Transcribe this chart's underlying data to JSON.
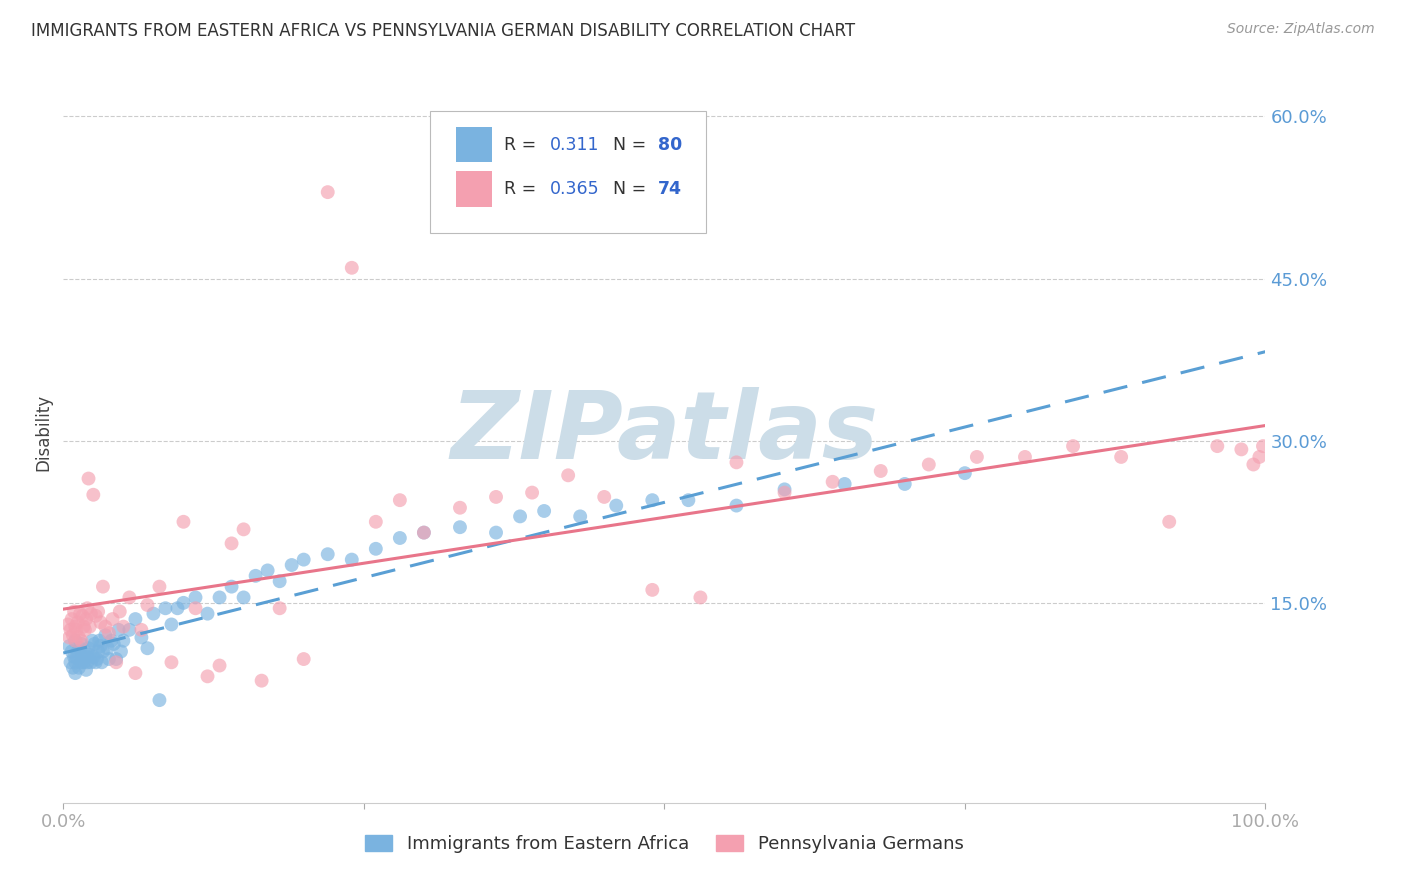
{
  "title": "IMMIGRANTS FROM EASTERN AFRICA VS PENNSYLVANIA GERMAN DISABILITY CORRELATION CHART",
  "source": "Source: ZipAtlas.com",
  "ylabel": "Disability",
  "xlim": [
    0.0,
    1.0
  ],
  "ylim": [
    -0.035,
    0.65
  ],
  "blue_R": "0.311",
  "blue_N": "80",
  "pink_R": "0.365",
  "pink_N": "74",
  "blue_color": "#7ab3e0",
  "pink_color": "#f4a0b0",
  "blue_line_color": "#5a9fd4",
  "pink_line_color": "#e8758a",
  "axis_label_color": "#5b9bd5",
  "background_color": "#ffffff",
  "grid_color": "#cccccc",
  "title_color": "#333333",
  "watermark_color": "#ccdde8",
  "legend_text_color": "#333333",
  "legend_value_color": "#3366cc",
  "blue_scatter_x": [
    0.005,
    0.006,
    0.007,
    0.008,
    0.009,
    0.01,
    0.01,
    0.01,
    0.011,
    0.012,
    0.013,
    0.014,
    0.015,
    0.015,
    0.016,
    0.017,
    0.018,
    0.019,
    0.02,
    0.02,
    0.021,
    0.022,
    0.023,
    0.024,
    0.025,
    0.026,
    0.027,
    0.028,
    0.029,
    0.03,
    0.031,
    0.032,
    0.033,
    0.035,
    0.037,
    0.038,
    0.04,
    0.042,
    0.044,
    0.046,
    0.048,
    0.05,
    0.055,
    0.06,
    0.065,
    0.07,
    0.075,
    0.08,
    0.085,
    0.09,
    0.095,
    0.1,
    0.11,
    0.12,
    0.13,
    0.14,
    0.15,
    0.16,
    0.17,
    0.18,
    0.19,
    0.2,
    0.22,
    0.24,
    0.26,
    0.28,
    0.3,
    0.33,
    0.36,
    0.38,
    0.4,
    0.43,
    0.46,
    0.49,
    0.52,
    0.56,
    0.6,
    0.65,
    0.7,
    0.75
  ],
  "blue_scatter_y": [
    0.11,
    0.095,
    0.105,
    0.09,
    0.1,
    0.115,
    0.085,
    0.095,
    0.1,
    0.105,
    0.09,
    0.108,
    0.095,
    0.112,
    0.1,
    0.095,
    0.105,
    0.088,
    0.1,
    0.095,
    0.108,
    0.102,
    0.095,
    0.115,
    0.1,
    0.112,
    0.095,
    0.098,
    0.105,
    0.115,
    0.11,
    0.095,
    0.105,
    0.12,
    0.108,
    0.098,
    0.115,
    0.112,
    0.098,
    0.125,
    0.105,
    0.115,
    0.125,
    0.135,
    0.118,
    0.108,
    0.14,
    0.06,
    0.145,
    0.13,
    0.145,
    0.15,
    0.155,
    0.14,
    0.155,
    0.165,
    0.155,
    0.175,
    0.18,
    0.17,
    0.185,
    0.19,
    0.195,
    0.19,
    0.2,
    0.21,
    0.215,
    0.22,
    0.215,
    0.23,
    0.235,
    0.23,
    0.24,
    0.245,
    0.245,
    0.24,
    0.255,
    0.26,
    0.26,
    0.27
  ],
  "pink_scatter_x": [
    0.004,
    0.005,
    0.006,
    0.007,
    0.008,
    0.009,
    0.01,
    0.01,
    0.011,
    0.012,
    0.013,
    0.014,
    0.015,
    0.016,
    0.017,
    0.018,
    0.019,
    0.02,
    0.021,
    0.022,
    0.023,
    0.025,
    0.027,
    0.029,
    0.031,
    0.033,
    0.035,
    0.038,
    0.041,
    0.044,
    0.047,
    0.05,
    0.055,
    0.06,
    0.065,
    0.07,
    0.08,
    0.09,
    0.1,
    0.11,
    0.12,
    0.13,
    0.14,
    0.15,
    0.165,
    0.18,
    0.2,
    0.22,
    0.24,
    0.26,
    0.28,
    0.3,
    0.33,
    0.36,
    0.39,
    0.42,
    0.45,
    0.49,
    0.53,
    0.56,
    0.6,
    0.64,
    0.68,
    0.72,
    0.76,
    0.8,
    0.84,
    0.88,
    0.92,
    0.96,
    0.98,
    0.99,
    0.995,
    0.998
  ],
  "pink_scatter_y": [
    0.13,
    0.118,
    0.125,
    0.135,
    0.12,
    0.142,
    0.115,
    0.128,
    0.125,
    0.132,
    0.118,
    0.14,
    0.115,
    0.138,
    0.128,
    0.125,
    0.135,
    0.145,
    0.265,
    0.128,
    0.14,
    0.25,
    0.138,
    0.142,
    0.132,
    0.165,
    0.128,
    0.122,
    0.135,
    0.095,
    0.142,
    0.128,
    0.155,
    0.085,
    0.125,
    0.148,
    0.165,
    0.095,
    0.225,
    0.145,
    0.082,
    0.092,
    0.205,
    0.218,
    0.078,
    0.145,
    0.098,
    0.53,
    0.46,
    0.225,
    0.245,
    0.215,
    0.238,
    0.248,
    0.252,
    0.268,
    0.248,
    0.162,
    0.155,
    0.28,
    0.252,
    0.262,
    0.272,
    0.278,
    0.285,
    0.285,
    0.295,
    0.285,
    0.225,
    0.295,
    0.292,
    0.278,
    0.285,
    0.295
  ]
}
